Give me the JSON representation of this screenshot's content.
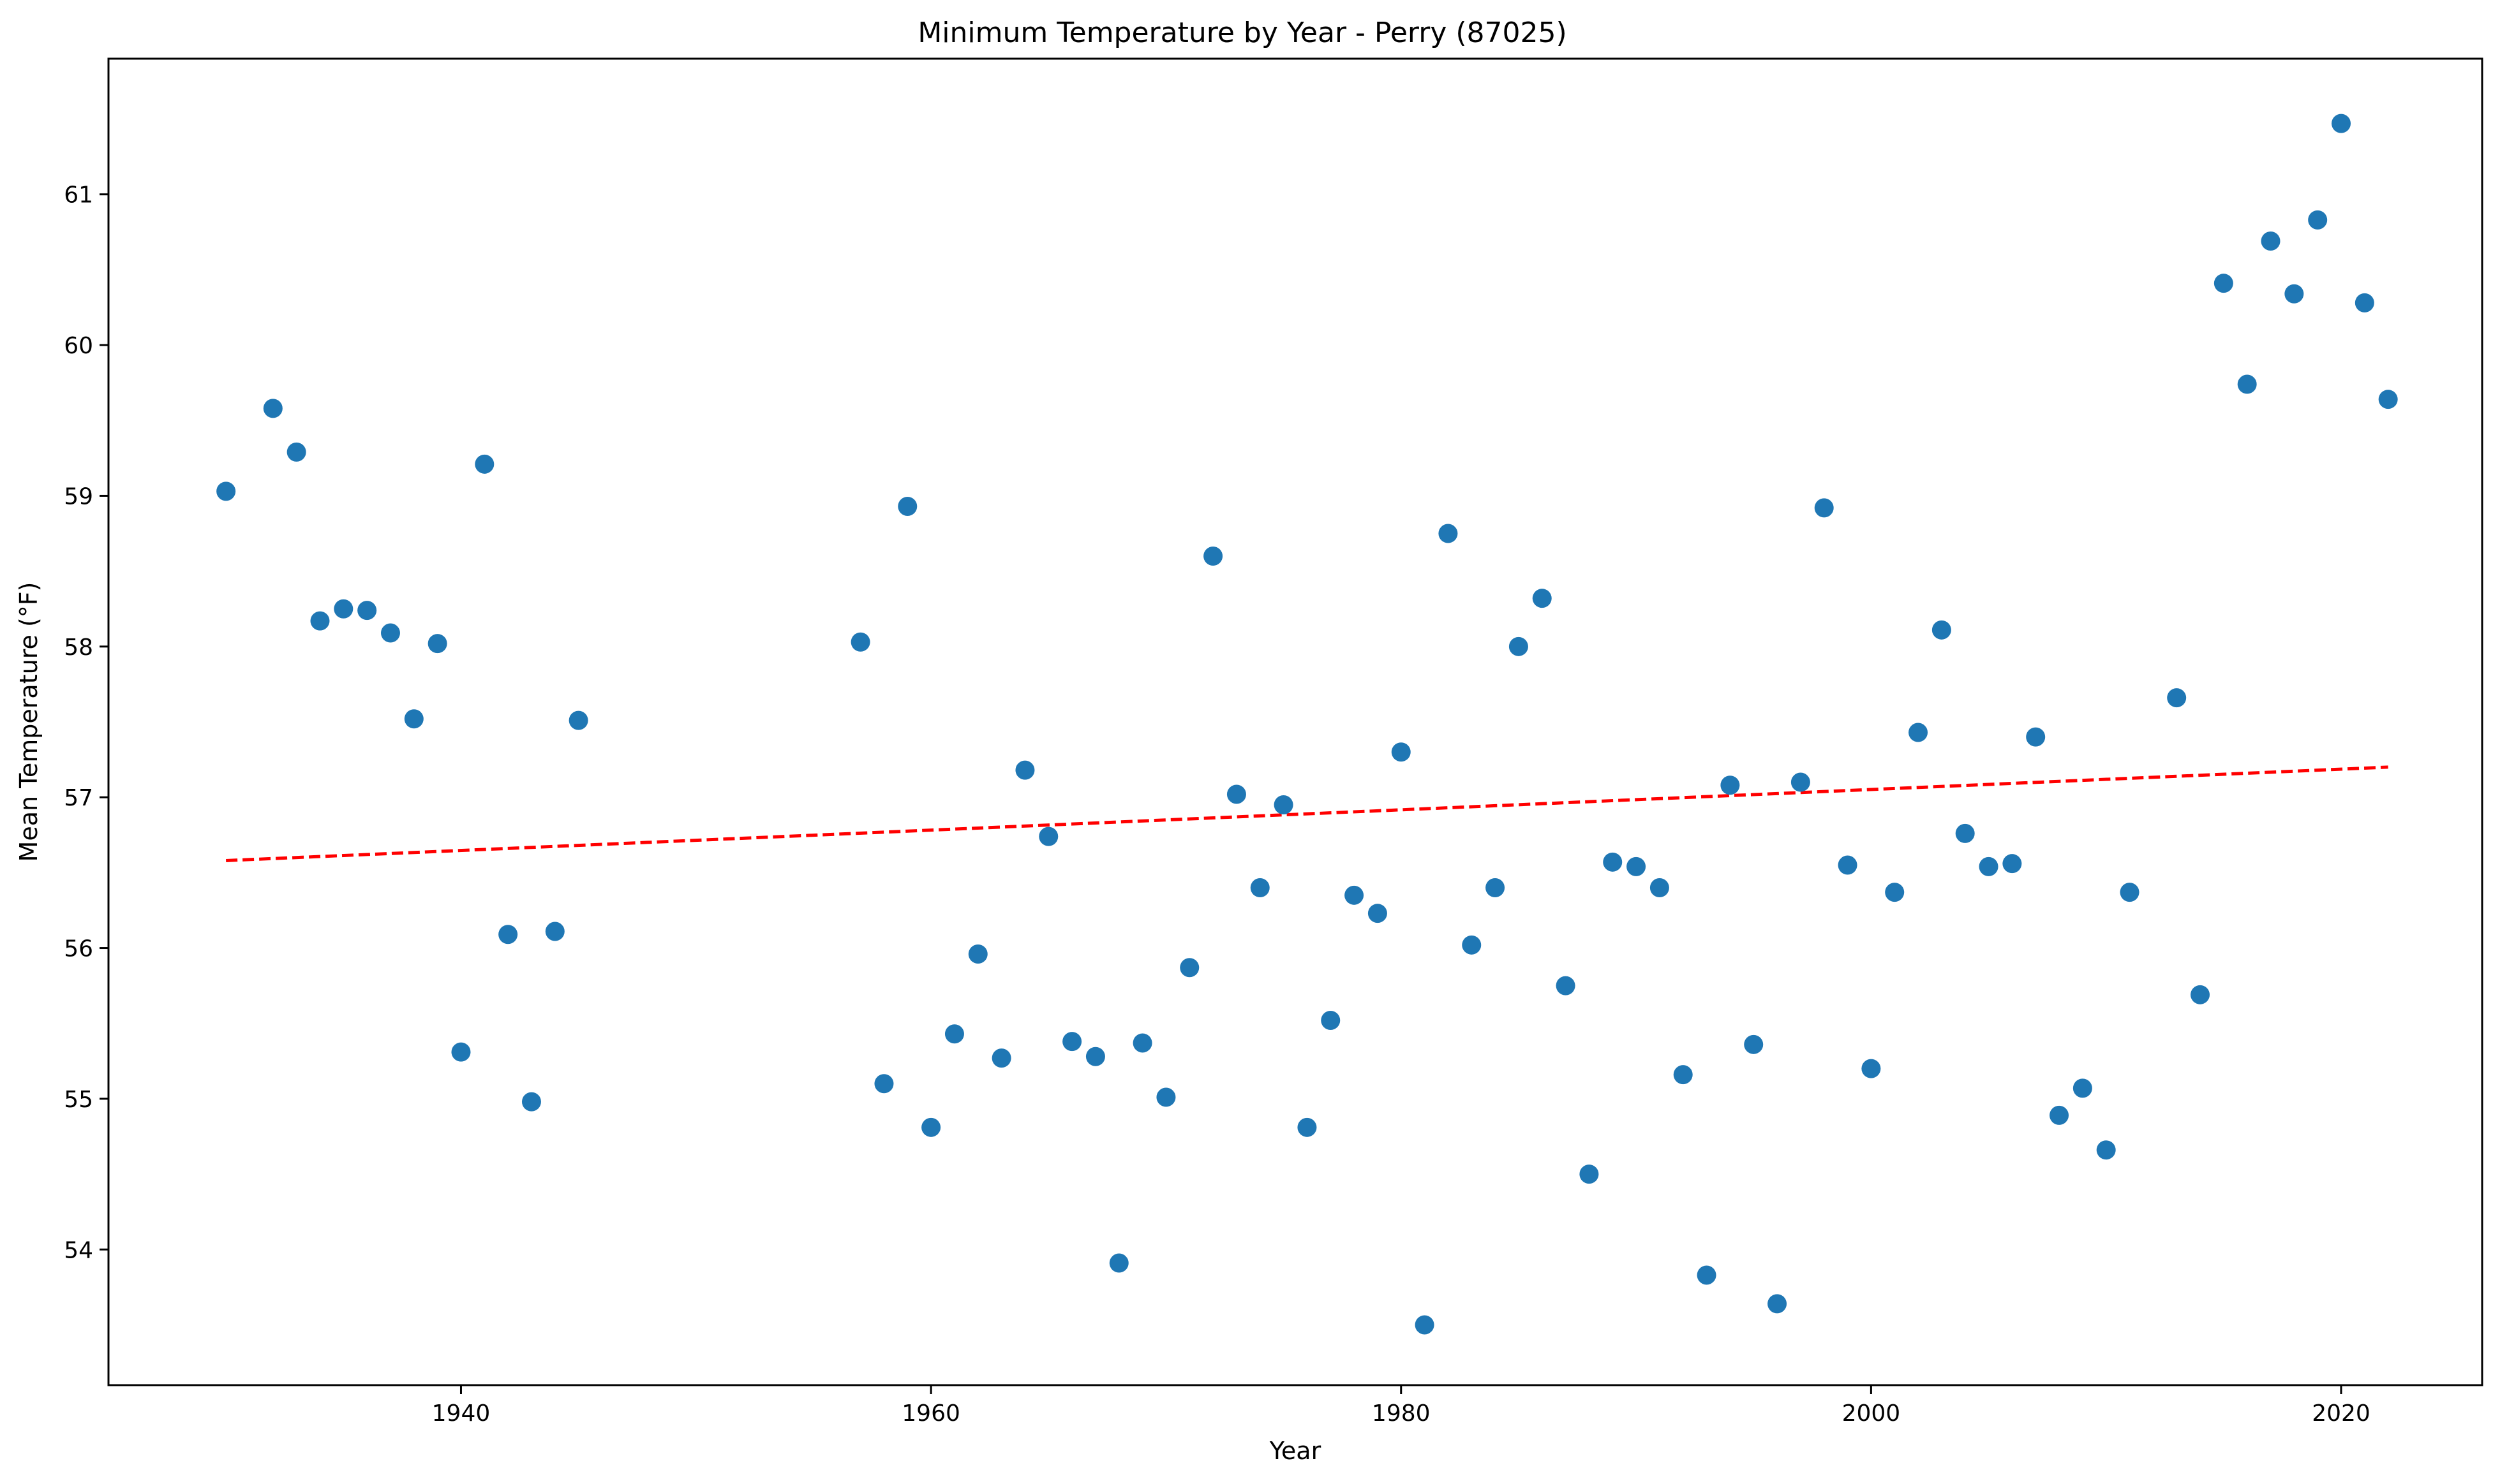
{
  "chart_data": {
    "type": "scatter",
    "title": "Minimum Temperature by Year - Perry (87025)",
    "xlabel": "Year",
    "ylabel": "Mean Temperature (°F)",
    "xlim": [
      1925,
      2026
    ],
    "ylim": [
      53.1,
      61.9
    ],
    "xticks": [
      1940,
      1960,
      1980,
      2000,
      2020
    ],
    "yticks": [
      54,
      55,
      56,
      57,
      58,
      59,
      60,
      61
    ],
    "grid": false,
    "marker_color": "#1f77b4",
    "trend_color": "#ff0000",
    "points": [
      [
        1930,
        59.03
      ],
      [
        1932,
        59.58
      ],
      [
        1933,
        59.29
      ],
      [
        1934,
        58.17
      ],
      [
        1935,
        58.25
      ],
      [
        1936,
        58.24
      ],
      [
        1937,
        58.09
      ],
      [
        1938,
        57.52
      ],
      [
        1939,
        58.02
      ],
      [
        1940,
        55.31
      ],
      [
        1941,
        59.21
      ],
      [
        1942,
        56.09
      ],
      [
        1943,
        54.98
      ],
      [
        1944,
        56.11
      ],
      [
        1945,
        57.51
      ],
      [
        1957,
        58.03
      ],
      [
        1958,
        55.1
      ],
      [
        1959,
        58.93
      ],
      [
        1960,
        54.81
      ],
      [
        1961,
        55.43
      ],
      [
        1962,
        55.96
      ],
      [
        1963,
        55.27
      ],
      [
        1964,
        57.18
      ],
      [
        1965,
        56.74
      ],
      [
        1966,
        55.38
      ],
      [
        1967,
        55.28
      ],
      [
        1968,
        53.91
      ],
      [
        1969,
        55.37
      ],
      [
        1970,
        55.01
      ],
      [
        1971,
        55.87
      ],
      [
        1972,
        58.6
      ],
      [
        1973,
        57.02
      ],
      [
        1974,
        56.4
      ],
      [
        1975,
        56.95
      ],
      [
        1976,
        54.81
      ],
      [
        1977,
        55.52
      ],
      [
        1978,
        56.35
      ],
      [
        1979,
        56.23
      ],
      [
        1980,
        57.3
      ],
      [
        1981,
        53.5
      ],
      [
        1982,
        58.75
      ],
      [
        1983,
        56.02
      ],
      [
        1984,
        56.4
      ],
      [
        1985,
        58.0
      ],
      [
        1986,
        58.32
      ],
      [
        1987,
        55.75
      ],
      [
        1988,
        54.5
      ],
      [
        1989,
        56.57
      ],
      [
        1990,
        56.54
      ],
      [
        1991,
        56.4
      ],
      [
        1992,
        55.16
      ],
      [
        1993,
        53.83
      ],
      [
        1994,
        57.08
      ],
      [
        1995,
        55.36
      ],
      [
        1996,
        53.64
      ],
      [
        1997,
        57.1
      ],
      [
        1998,
        58.92
      ],
      [
        1999,
        56.55
      ],
      [
        2000,
        55.2
      ],
      [
        2001,
        56.37
      ],
      [
        2002,
        57.43
      ],
      [
        2003,
        58.11
      ],
      [
        2004,
        56.76
      ],
      [
        2005,
        56.54
      ],
      [
        2006,
        56.56
      ],
      [
        2007,
        57.4
      ],
      [
        2008,
        54.89
      ],
      [
        2009,
        55.07
      ],
      [
        2010,
        54.66
      ],
      [
        2011,
        56.37
      ],
      [
        2013,
        57.66
      ],
      [
        2014,
        55.69
      ],
      [
        2015,
        60.41
      ],
      [
        2016,
        59.74
      ],
      [
        2017,
        60.69
      ],
      [
        2018,
        60.34
      ],
      [
        2019,
        60.83
      ],
      [
        2020,
        61.47
      ],
      [
        2021,
        60.28
      ],
      [
        2022,
        59.64
      ]
    ],
    "trend_line": [
      [
        1930,
        56.58
      ],
      [
        2022,
        57.2
      ]
    ]
  }
}
